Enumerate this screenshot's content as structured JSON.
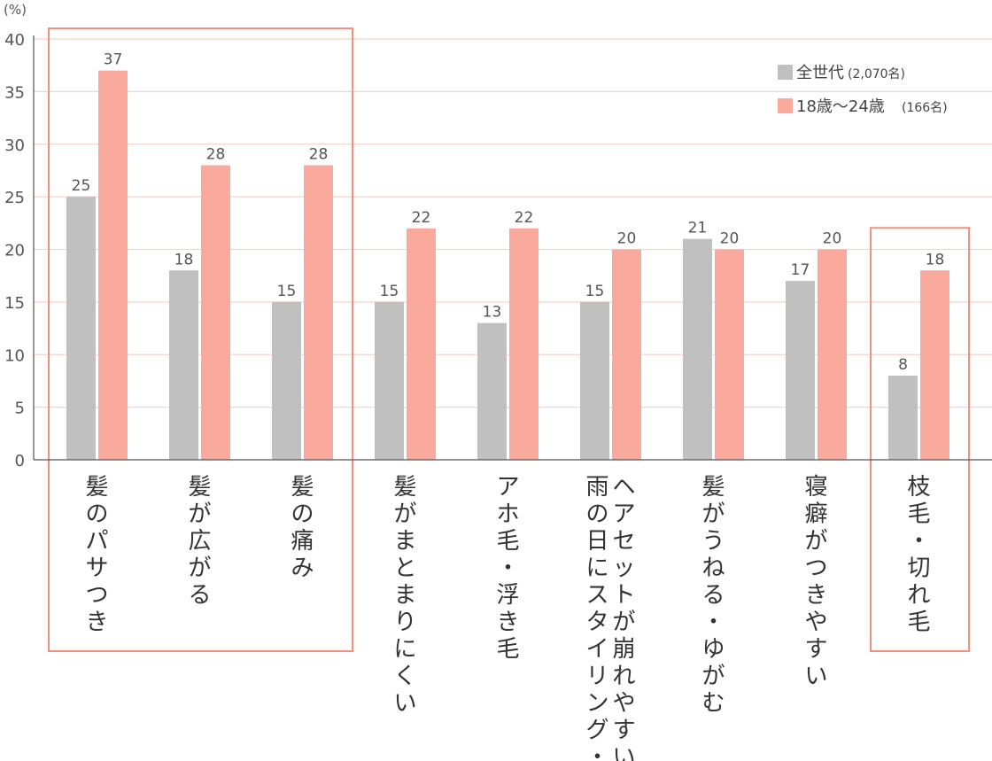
{
  "colors": {
    "series_all": "#c0c0c0",
    "series_young": "#f9aa9c",
    "highlight_box": "#f4907e",
    "gridline": "#f6d2cc",
    "axis": "#555555"
  },
  "chart_data": {
    "type": "bar",
    "unit_label": "(%)",
    "ylim": [
      0,
      40
    ],
    "yticks": [
      0,
      5,
      10,
      15,
      20,
      25,
      30,
      35,
      40
    ],
    "grid": true,
    "legend_position": "top-right",
    "categories": [
      "髪のパサつき",
      "髪が広がる",
      "髪の痛み",
      "髪がまとまりにくい",
      "アホ毛・浮き毛",
      "雨の日にスタイリング・ヘアセットが崩れやすい",
      "髪がうねる・ゆがむ",
      "寝癖がつきやすい",
      "枝毛・切れ毛"
    ],
    "category_columns": [
      [
        "髪のパサつき"
      ],
      [
        "髪が広がる"
      ],
      [
        "髪の痛み"
      ],
      [
        "髪がまとまりにくい"
      ],
      [
        "アホ毛・浮き毛"
      ],
      [
        "雨の日にスタイリング・",
        "ヘアセットが崩れやすい"
      ],
      [
        "髪がうねる・ゆがむ"
      ],
      [
        "寝癖がつきやすい"
      ],
      [
        "枝毛・切れ毛"
      ]
    ],
    "series": [
      {
        "name": "全世代",
        "sample": "(2,070名)",
        "values": [
          25,
          18,
          15,
          15,
          13,
          15,
          21,
          17,
          8
        ]
      },
      {
        "name": "18歳〜24歳",
        "sample": "(166名)",
        "values": [
          37,
          28,
          28,
          22,
          22,
          20,
          20,
          20,
          18
        ]
      }
    ],
    "highlight_groups": [
      [
        0,
        2
      ],
      [
        8,
        8
      ]
    ]
  }
}
